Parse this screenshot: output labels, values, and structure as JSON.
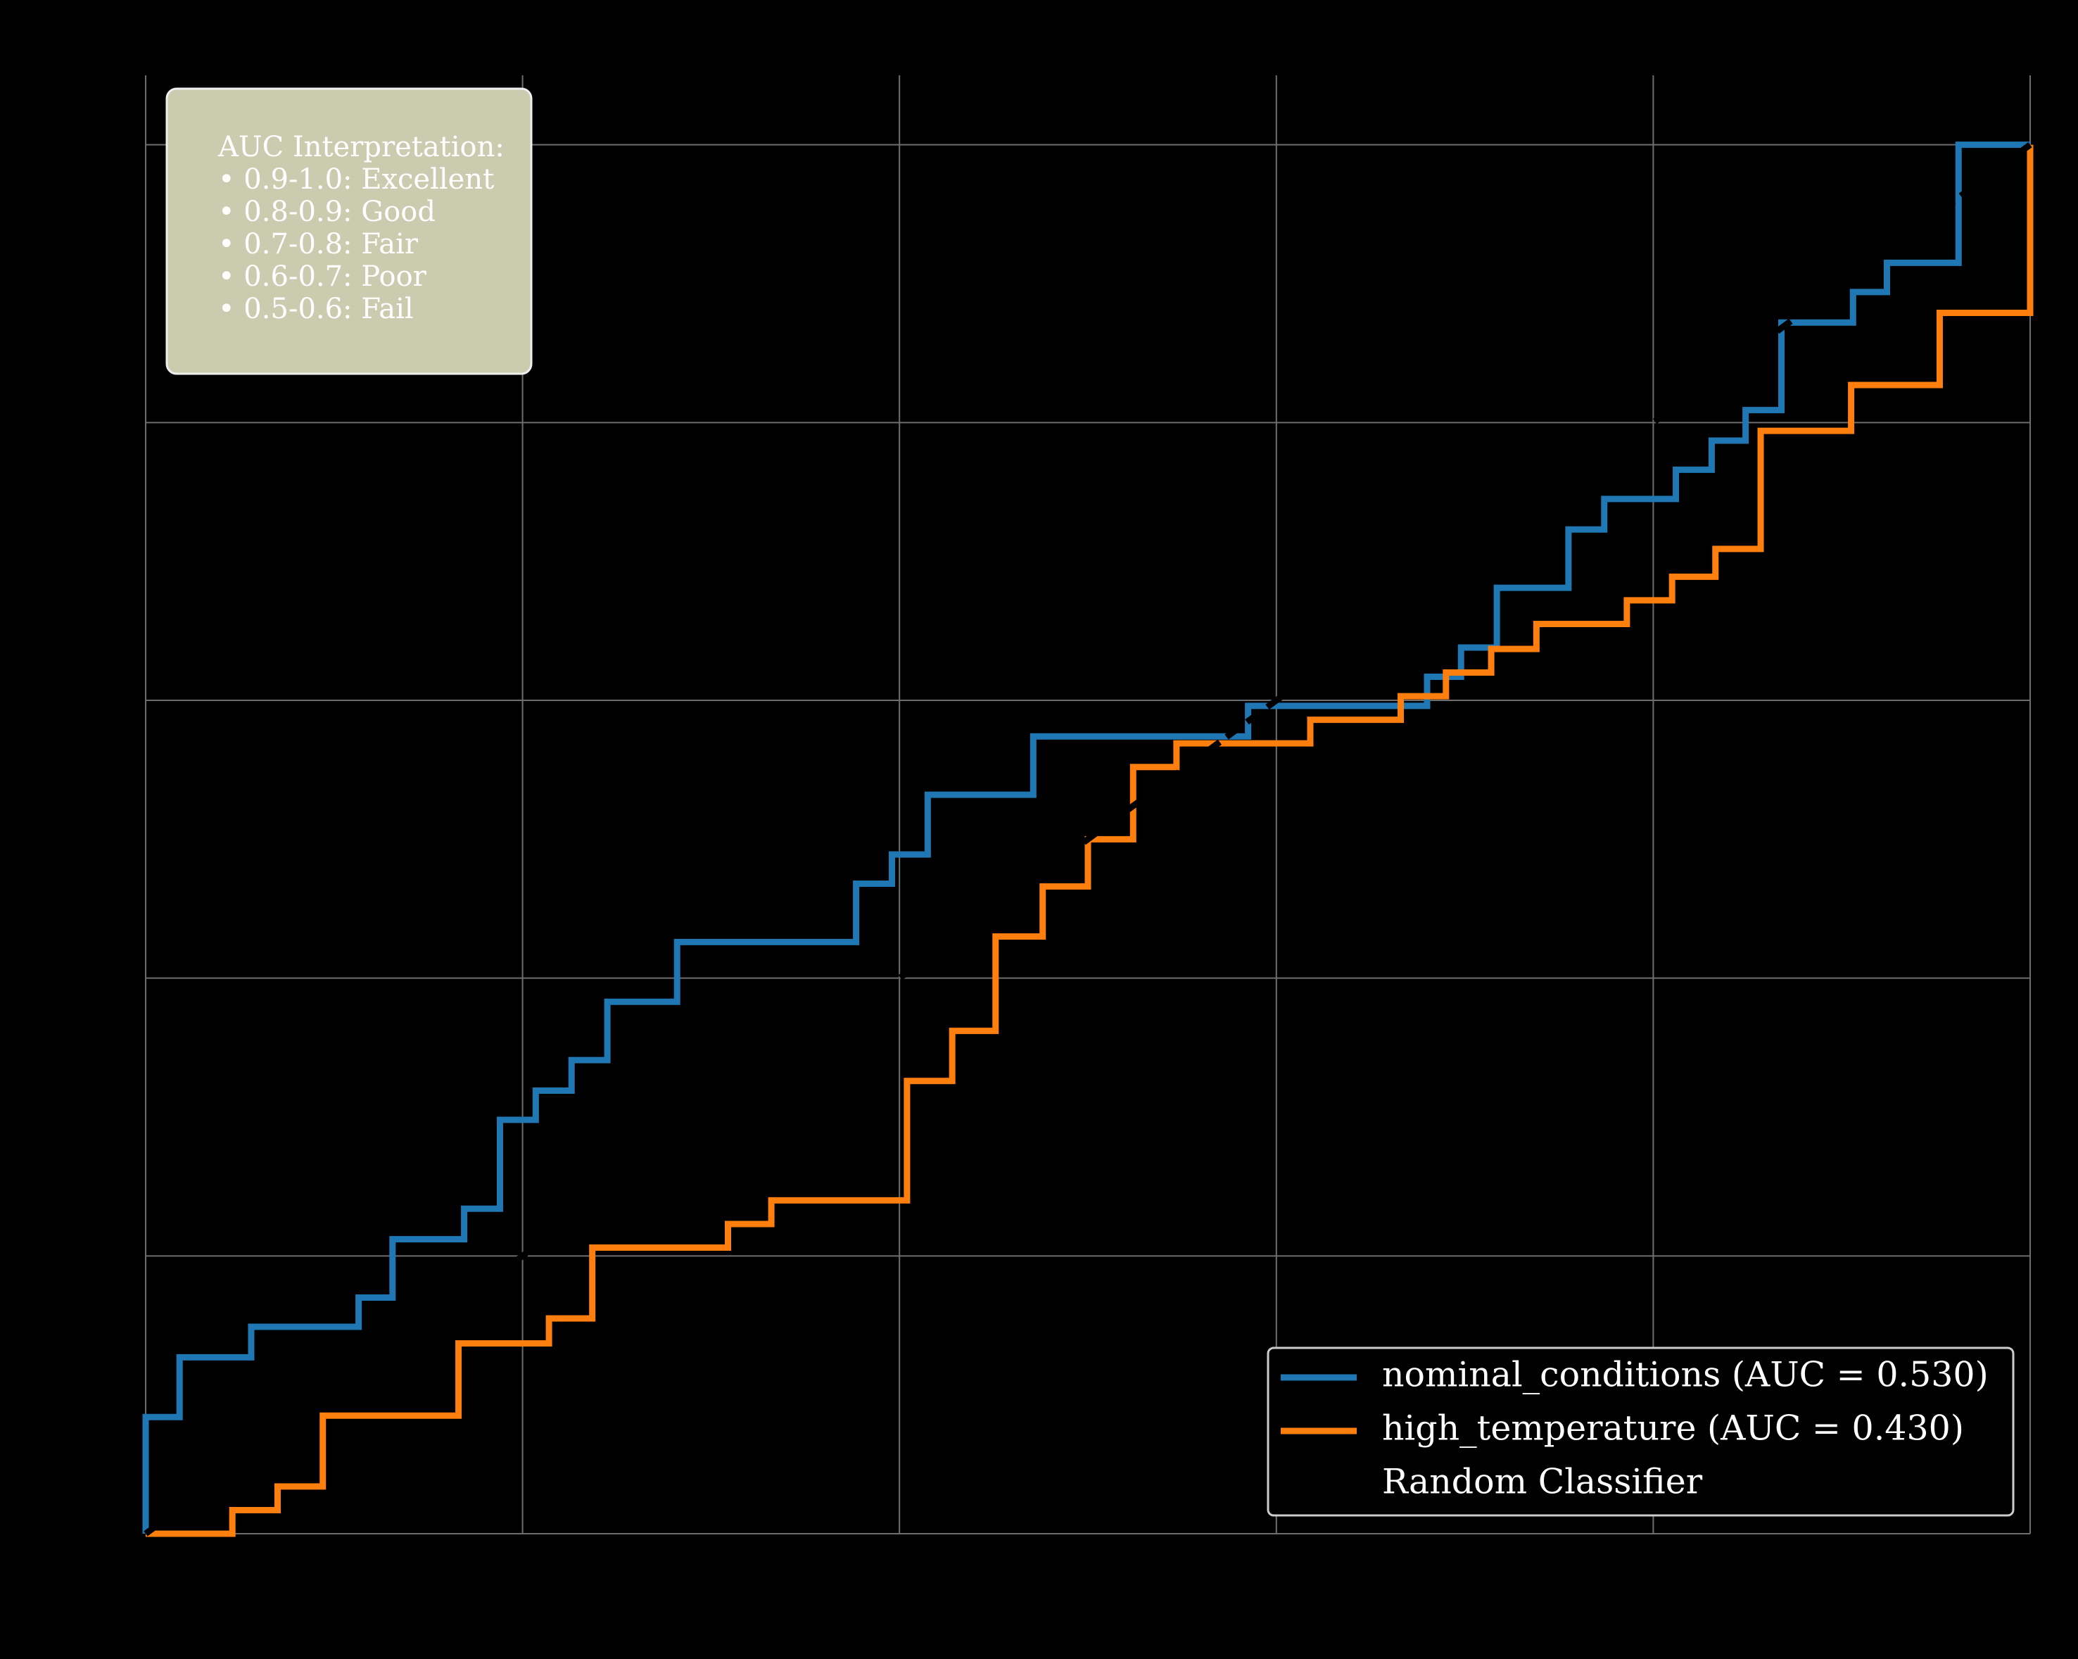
{
  "chart_data": {
    "type": "line",
    "xlim": [
      0,
      1
    ],
    "ylim": [
      0,
      1.05
    ],
    "xticks": [
      0.0,
      0.2,
      0.4,
      0.6,
      0.8,
      1.0
    ],
    "yticks": [
      0.0,
      0.2,
      0.4,
      0.6,
      0.8,
      1.0
    ],
    "grid": true,
    "legend": "lower right",
    "annotation": [
      "AUC Interpretation:",
      "• 0.9-1.0: Excellent",
      "• 0.8-0.9: Good",
      "• 0.7-0.8: Fair",
      "• 0.6-0.7: Poor",
      "• 0.5-0.6: Fail"
    ],
    "series": [
      {
        "name": "nominal_conditions (AUC = 0.530)",
        "color": "#1f77b4",
        "dashed": false,
        "x": [
          0,
          0,
          0.018,
          0.018,
          0.056,
          0.056,
          0.113,
          0.113,
          0.131,
          0.131,
          0.169,
          0.169,
          0.188,
          0.188,
          0.207,
          0.207,
          0.226,
          0.226,
          0.245,
          0.245,
          0.282,
          0.282,
          0.377,
          0.377,
          0.396,
          0.396,
          0.415,
          0.415,
          0.471,
          0.471,
          0.585,
          0.585,
          0.68,
          0.68,
          0.698,
          0.698,
          0.717,
          0.717,
          0.755,
          0.755,
          0.774,
          0.774,
          0.812,
          0.812,
          0.831,
          0.831,
          0.849,
          0.849,
          0.868,
          0.868,
          0.906,
          0.906,
          0.924,
          0.924,
          0.962,
          0.962,
          1.0
        ],
        "values": [
          0,
          0.084,
          0.084,
          0.127,
          0.127,
          0.149,
          0.149,
          0.17,
          0.17,
          0.212,
          0.212,
          0.234,
          0.234,
          0.298,
          0.298,
          0.319,
          0.319,
          0.341,
          0.341,
          0.383,
          0.383,
          0.426,
          0.426,
          0.468,
          0.468,
          0.489,
          0.489,
          0.532,
          0.532,
          0.574,
          0.574,
          0.596,
          0.596,
          0.617,
          0.617,
          0.638,
          0.638,
          0.681,
          0.681,
          0.723,
          0.723,
          0.745,
          0.745,
          0.766,
          0.766,
          0.787,
          0.787,
          0.809,
          0.809,
          0.872,
          0.872,
          0.894,
          0.894,
          0.915,
          0.915,
          1.0,
          1.0
        ]
      },
      {
        "name": "high_temperature (AUC = 0.430)",
        "color": "#ff7f0e",
        "dashed": false,
        "x": [
          0,
          0.046,
          0.046,
          0.07,
          0.07,
          0.094,
          0.094,
          0.166,
          0.166,
          0.214,
          0.214,
          0.237,
          0.237,
          0.309,
          0.309,
          0.332,
          0.332,
          0.404,
          0.404,
          0.428,
          0.428,
          0.451,
          0.451,
          0.476,
          0.476,
          0.5,
          0.5,
          0.524,
          0.524,
          0.547,
          0.547,
          0.618,
          0.618,
          0.666,
          0.666,
          0.69,
          0.69,
          0.714,
          0.714,
          0.738,
          0.738,
          0.786,
          0.786,
          0.81,
          0.81,
          0.833,
          0.833,
          0.857,
          0.857,
          0.905,
          0.905,
          0.952,
          0.952,
          1.0,
          1.0
        ],
        "values": [
          0,
          0,
          0.017,
          0.017,
          0.034,
          0.034,
          0.085,
          0.085,
          0.137,
          0.137,
          0.155,
          0.155,
          0.206,
          0.206,
          0.223,
          0.223,
          0.24,
          0.24,
          0.326,
          0.326,
          0.362,
          0.362,
          0.43,
          0.43,
          0.466,
          0.466,
          0.5,
          0.5,
          0.552,
          0.552,
          0.569,
          0.569,
          0.586,
          0.586,
          0.603,
          0.603,
          0.62,
          0.62,
          0.637,
          0.637,
          0.655,
          0.655,
          0.672,
          0.672,
          0.689,
          0.689,
          0.709,
          0.709,
          0.794,
          0.794,
          0.827,
          0.827,
          0.879,
          0.879,
          1.0
        ]
      },
      {
        "name": "Random Classifier",
        "color": "#000000",
        "dashed": true,
        "x": [
          0,
          1
        ],
        "values": [
          0,
          1
        ]
      }
    ]
  }
}
